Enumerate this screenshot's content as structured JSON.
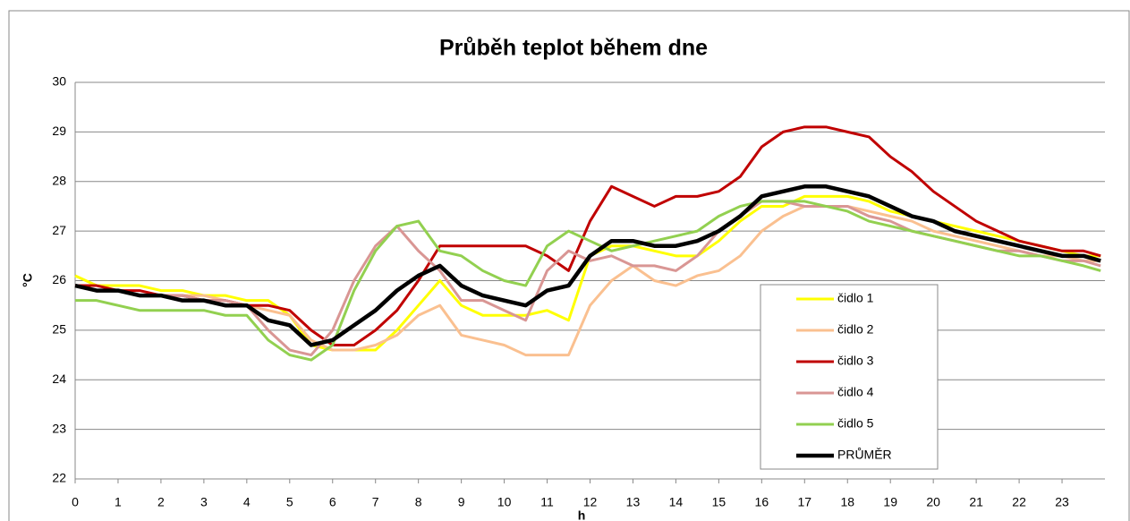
{
  "chart_data": {
    "type": "line",
    "title": "Průběh teplot během dne",
    "xlabel": "h",
    "ylabel": "°C",
    "x": [
      0,
      0.5,
      1,
      1.5,
      2,
      2.5,
      3,
      3.5,
      4,
      4.5,
      5,
      5.5,
      6,
      6.5,
      7,
      7.5,
      8,
      8.5,
      9,
      9.5,
      10,
      10.5,
      11,
      11.5,
      12,
      12.5,
      13,
      13.5,
      14,
      14.5,
      15,
      15.5,
      16,
      16.5,
      17,
      17.5,
      18,
      18.5,
      19,
      19.5,
      20,
      20.5,
      21,
      21.5,
      22,
      22.5,
      23,
      23.5,
      23.9
    ],
    "xlim": [
      0,
      24
    ],
    "xticks": [
      0,
      1,
      2,
      3,
      4,
      5,
      6,
      7,
      8,
      9,
      10,
      11,
      12,
      13,
      14,
      15,
      16,
      17,
      18,
      19,
      20,
      21,
      22,
      23
    ],
    "ylim": [
      22,
      30
    ],
    "yticks": [
      22,
      23,
      24,
      25,
      26,
      27,
      28,
      29,
      30
    ],
    "grid": true,
    "legend": "right",
    "series": [
      {
        "name": "čidlo 1",
        "color": "#ffff00",
        "values": [
          26.1,
          25.9,
          25.9,
          25.9,
          25.8,
          25.8,
          25.7,
          25.7,
          25.6,
          25.6,
          25.3,
          24.7,
          24.6,
          24.6,
          24.6,
          25.0,
          25.5,
          26.0,
          25.5,
          25.3,
          25.3,
          25.3,
          25.4,
          25.2,
          26.5,
          26.7,
          26.7,
          26.6,
          26.5,
          26.5,
          26.8,
          27.2,
          27.5,
          27.5,
          27.7,
          27.7,
          27.7,
          27.6,
          27.4,
          27.3,
          27.2,
          27.1,
          27.0,
          26.9,
          26.8,
          26.7,
          26.6,
          26.5,
          26.5
        ]
      },
      {
        "name": "čidlo 2",
        "color": "#fac090",
        "values": [
          25.9,
          25.8,
          25.8,
          25.7,
          25.7,
          25.7,
          25.7,
          25.6,
          25.5,
          25.4,
          25.3,
          24.8,
          24.6,
          24.6,
          24.7,
          24.9,
          25.3,
          25.5,
          24.9,
          24.8,
          24.7,
          24.5,
          24.5,
          24.5,
          25.5,
          26.0,
          26.3,
          26.0,
          25.9,
          26.1,
          26.2,
          26.5,
          27.0,
          27.3,
          27.5,
          27.5,
          27.5,
          27.4,
          27.3,
          27.2,
          27.0,
          26.9,
          26.8,
          26.7,
          26.6,
          26.5,
          26.5,
          26.4,
          26.4
        ]
      },
      {
        "name": "čidlo 3",
        "color": "#c00000",
        "values": [
          25.9,
          25.9,
          25.8,
          25.8,
          25.7,
          25.7,
          25.6,
          25.6,
          25.5,
          25.5,
          25.4,
          25.0,
          24.7,
          24.7,
          25.0,
          25.4,
          26.0,
          26.7,
          26.7,
          26.7,
          26.7,
          26.7,
          26.5,
          26.2,
          27.2,
          27.9,
          27.7,
          27.5,
          27.7,
          27.7,
          27.8,
          28.1,
          28.7,
          29.0,
          29.1,
          29.1,
          29.0,
          28.9,
          28.5,
          28.2,
          27.8,
          27.5,
          27.2,
          27.0,
          26.8,
          26.7,
          26.6,
          26.6,
          26.5
        ]
      },
      {
        "name": "čidlo 4",
        "color": "#d99694",
        "values": [
          25.9,
          25.8,
          25.8,
          25.7,
          25.7,
          25.7,
          25.6,
          25.6,
          25.5,
          25.0,
          24.6,
          24.5,
          25.0,
          26.0,
          26.7,
          27.1,
          26.6,
          26.2,
          25.6,
          25.6,
          25.4,
          25.2,
          26.2,
          26.6,
          26.4,
          26.5,
          26.3,
          26.3,
          26.2,
          26.5,
          27.0,
          27.3,
          27.6,
          27.6,
          27.5,
          27.5,
          27.5,
          27.3,
          27.2,
          27.0,
          26.9,
          26.8,
          26.7,
          26.6,
          26.6,
          26.5,
          26.4,
          26.4,
          26.3
        ]
      },
      {
        "name": "čidlo 5",
        "color": "#92d050",
        "values": [
          25.6,
          25.6,
          25.5,
          25.4,
          25.4,
          25.4,
          25.4,
          25.3,
          25.3,
          24.8,
          24.5,
          24.4,
          24.7,
          25.8,
          26.6,
          27.1,
          27.2,
          26.6,
          26.5,
          26.2,
          26.0,
          25.9,
          26.7,
          27.0,
          26.8,
          26.6,
          26.7,
          26.8,
          26.9,
          27.0,
          27.3,
          27.5,
          27.6,
          27.6,
          27.6,
          27.5,
          27.4,
          27.2,
          27.1,
          27.0,
          26.9,
          26.8,
          26.7,
          26.6,
          26.5,
          26.5,
          26.4,
          26.3,
          26.2
        ]
      },
      {
        "name": "PRŮMĚR",
        "color": "#000000",
        "values": [
          25.9,
          25.8,
          25.8,
          25.7,
          25.7,
          25.6,
          25.6,
          25.5,
          25.5,
          25.2,
          25.1,
          24.7,
          24.8,
          25.1,
          25.4,
          25.8,
          26.1,
          26.3,
          25.9,
          25.7,
          25.6,
          25.5,
          25.8,
          25.9,
          26.5,
          26.8,
          26.8,
          26.7,
          26.7,
          26.8,
          27.0,
          27.3,
          27.7,
          27.8,
          27.9,
          27.9,
          27.8,
          27.7,
          27.5,
          27.3,
          27.2,
          27.0,
          26.9,
          26.8,
          26.7,
          26.6,
          26.5,
          26.5,
          26.4
        ]
      }
    ]
  }
}
